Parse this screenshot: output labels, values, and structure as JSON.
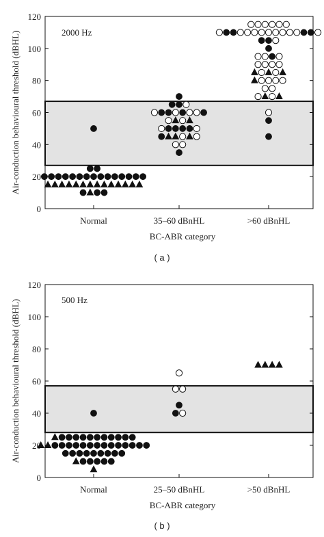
{
  "chart_data": [
    {
      "type": "scatter",
      "panel_label": "( a )",
      "annotation": "2000 Hz",
      "xlabel": "BC-ABR category",
      "ylabel": "Air-conduction behavioural threshold (dBHL)",
      "categories": [
        "Normal",
        "35–60 dBnHL",
        ">60 dBnHL"
      ],
      "ylim": [
        0,
        120
      ],
      "yticks": [
        "0",
        "20",
        "40",
        "60",
        "80",
        "100",
        "120"
      ],
      "shaded_band": [
        27,
        67
      ],
      "legend": "none",
      "grid": false,
      "points": [
        {
          "category": "Normal",
          "value": 50,
          "rows": [
            [
              "filled"
            ]
          ]
        },
        {
          "category": "Normal",
          "value": 25,
          "rows": [
            [
              "filled",
              "filled"
            ]
          ]
        },
        {
          "category": "Normal",
          "value": 20,
          "rows": [
            [
              "filled",
              "filled",
              "filled",
              "filled",
              "filled",
              "filled",
              "filled",
              "filled",
              "filled",
              "filled",
              "filled",
              "filled",
              "filled",
              "filled",
              "filled"
            ]
          ]
        },
        {
          "category": "Normal",
          "value": 15,
          "rows": [
            [
              "triangle",
              "triangle",
              "triangle",
              "triangle",
              "triangle",
              "triangle",
              "triangle",
              "triangle",
              "triangle",
              "triangle",
              "triangle",
              "triangle",
              "triangle",
              "triangle"
            ]
          ]
        },
        {
          "category": "Normal",
          "value": 10,
          "rows": [
            [
              "filled",
              "triangle",
              "filled",
              "filled"
            ]
          ]
        },
        {
          "category": "35–60 dBnHL",
          "value": 70,
          "rows": [
            [
              "filled"
            ]
          ]
        },
        {
          "category": "35–60 dBnHL",
          "value": 65,
          "rows": [
            [
              "filled",
              "filled",
              "open"
            ]
          ]
        },
        {
          "category": "35–60 dBnHL",
          "value": 60,
          "rows": [
            [
              "open",
              "filled",
              "filled",
              "open",
              "filled",
              "open",
              "open",
              "filled"
            ]
          ]
        },
        {
          "category": "35–60 dBnHL",
          "value": 55,
          "rows": [
            [
              "open",
              "triangle",
              "open",
              "triangle"
            ]
          ]
        },
        {
          "category": "35–60 dBnHL",
          "value": 50,
          "rows": [
            [
              "open",
              "filled",
              "filled",
              "filled",
              "filled",
              "open"
            ]
          ]
        },
        {
          "category": "35–60 dBnHL",
          "value": 45,
          "rows": [
            [
              "filled",
              "triangle",
              "triangle",
              "open",
              "triangle",
              "open"
            ]
          ]
        },
        {
          "category": "35–60 dBnHL",
          "value": 40,
          "rows": [
            [
              "open",
              "open"
            ]
          ]
        },
        {
          "category": "35–60 dBnHL",
          "value": 35,
          "rows": [
            [
              "filled"
            ]
          ]
        },
        {
          "category": ">60 dBnHL",
          "value": 115,
          "rows": [
            [
              "open",
              "open",
              "open",
              "open",
              "open",
              "open"
            ]
          ]
        },
        {
          "category": ">60 dBnHL",
          "value": 110,
          "rows": [
            [
              "open",
              "filled",
              "filled",
              "open",
              "open",
              "open",
              "open",
              "open",
              "open",
              "open",
              "open",
              "open",
              "filled",
              "filled",
              "open"
            ]
          ]
        },
        {
          "category": ">60 dBnHL",
          "value": 105,
          "rows": [
            [
              "filled",
              "filled",
              "open"
            ]
          ]
        },
        {
          "category": ">60 dBnHL",
          "value": 100,
          "rows": [
            [
              "filled"
            ]
          ]
        },
        {
          "category": ">60 dBnHL",
          "value": 95,
          "rows": [
            [
              "open",
              "open",
              "filled",
              "open"
            ]
          ]
        },
        {
          "category": ">60 dBnHL",
          "value": 90,
          "rows": [
            [
              "open",
              "open",
              "open",
              "open"
            ]
          ]
        },
        {
          "category": ">60 dBnHL",
          "value": 85,
          "rows": [
            [
              "triangle",
              "open",
              "triangle",
              "open",
              "triangle"
            ]
          ]
        },
        {
          "category": ">60 dBnHL",
          "value": 80,
          "rows": [
            [
              "triangle",
              "open",
              "open",
              "open",
              "open"
            ]
          ]
        },
        {
          "category": ">60 dBnHL",
          "value": 75,
          "rows": [
            [
              "open",
              "open"
            ]
          ]
        },
        {
          "category": ">60 dBnHL",
          "value": 70,
          "rows": [
            [
              "open",
              "triangle",
              "open",
              "triangle"
            ]
          ]
        },
        {
          "category": ">60 dBnHL",
          "value": 60,
          "rows": [
            [
              "open"
            ]
          ]
        },
        {
          "category": ">60 dBnHL",
          "value": 55,
          "rows": [
            [
              "filled"
            ]
          ]
        },
        {
          "category": ">60 dBnHL",
          "value": 45,
          "rows": [
            [
              "filled"
            ]
          ]
        }
      ]
    },
    {
      "type": "scatter",
      "panel_label": "( b )",
      "annotation": "500 Hz",
      "xlabel": "BC-ABR category",
      "ylabel": "Air-conduction behavioural threshold (dBHL)",
      "categories": [
        "Normal",
        "25–50 dBnHL",
        ">50 dBnHL"
      ],
      "ylim": [
        0,
        120
      ],
      "yticks": [
        "0",
        "20",
        "40",
        "60",
        "80",
        "100",
        "120"
      ],
      "shaded_band": [
        28,
        57
      ],
      "legend": "none",
      "grid": false,
      "points": [
        {
          "category": "Normal",
          "value": 40,
          "rows": [
            [
              "filled"
            ]
          ]
        },
        {
          "category": "Normal",
          "value": 25,
          "rows": [
            [
              "triangle",
              "filled",
              "filled",
              "filled",
              "filled",
              "filled",
              "filled",
              "filled",
              "filled",
              "filled",
              "filled",
              "filled"
            ]
          ]
        },
        {
          "category": "Normal",
          "value": 20,
          "rows": [
            [
              "triangle",
              "triangle",
              "filled",
              "filled",
              "filled",
              "filled",
              "filled",
              "filled",
              "filled",
              "filled",
              "filled",
              "filled",
              "filled",
              "filled",
              "filled",
              "filled"
            ]
          ]
        },
        {
          "category": "Normal",
          "value": 15,
          "rows": [
            [
              "filled",
              "filled",
              "filled",
              "filled",
              "filled",
              "filled",
              "filled",
              "filled",
              "filled"
            ]
          ]
        },
        {
          "category": "Normal",
          "value": 10,
          "rows": [
            [
              "triangle",
              "filled",
              "filled",
              "filled",
              "filled",
              "filled"
            ]
          ]
        },
        {
          "category": "Normal",
          "value": 5,
          "rows": [
            [
              "triangle"
            ]
          ]
        },
        {
          "category": "25–50 dBnHL",
          "value": 65,
          "rows": [
            [
              "open"
            ]
          ]
        },
        {
          "category": "25–50 dBnHL",
          "value": 55,
          "rows": [
            [
              "open",
              "open"
            ]
          ]
        },
        {
          "category": "25–50 dBnHL",
          "value": 45,
          "rows": [
            [
              "filled"
            ]
          ]
        },
        {
          "category": "25–50 dBnHL",
          "value": 40,
          "rows": [
            [
              "filled",
              "open"
            ]
          ]
        },
        {
          "category": ">50 dBnHL",
          "value": 70,
          "rows": [
            [
              "triangle",
              "triangle",
              "triangle",
              "triangle"
            ]
          ]
        }
      ]
    }
  ]
}
